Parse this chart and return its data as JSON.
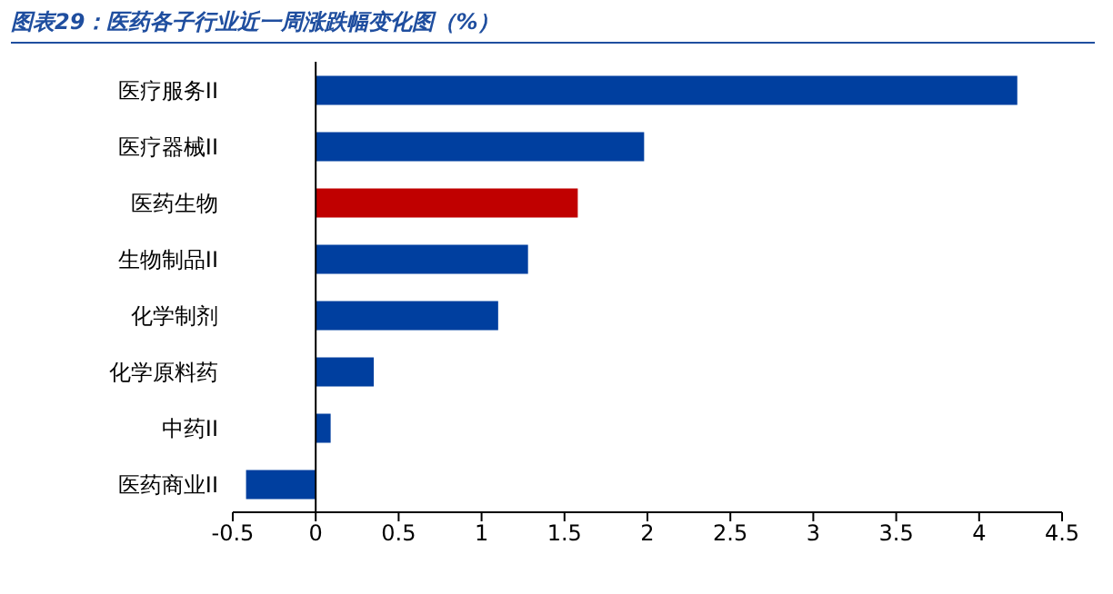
{
  "chart_data": {
    "type": "bar",
    "orientation": "horizontal",
    "title": "图表29：医药各子行业近一周涨跌幅变化图（%）",
    "categories": [
      "医疗服务II",
      "医疗器械II",
      "医药生物",
      "生物制品II",
      "化学制剂",
      "化学原料药",
      "中药II",
      "医药商业II"
    ],
    "values": [
      4.23,
      1.98,
      1.58,
      1.28,
      1.1,
      0.35,
      0.09,
      -0.42
    ],
    "colors": [
      "#003f9f",
      "#003f9f",
      "#c00000",
      "#003f9f",
      "#003f9f",
      "#003f9f",
      "#003f9f",
      "#003f9f"
    ],
    "xlim": [
      -0.5,
      4.5
    ],
    "xticks": [
      -0.5,
      0,
      0.5,
      1,
      1.5,
      2,
      2.5,
      3,
      3.5,
      4,
      4.5
    ]
  }
}
